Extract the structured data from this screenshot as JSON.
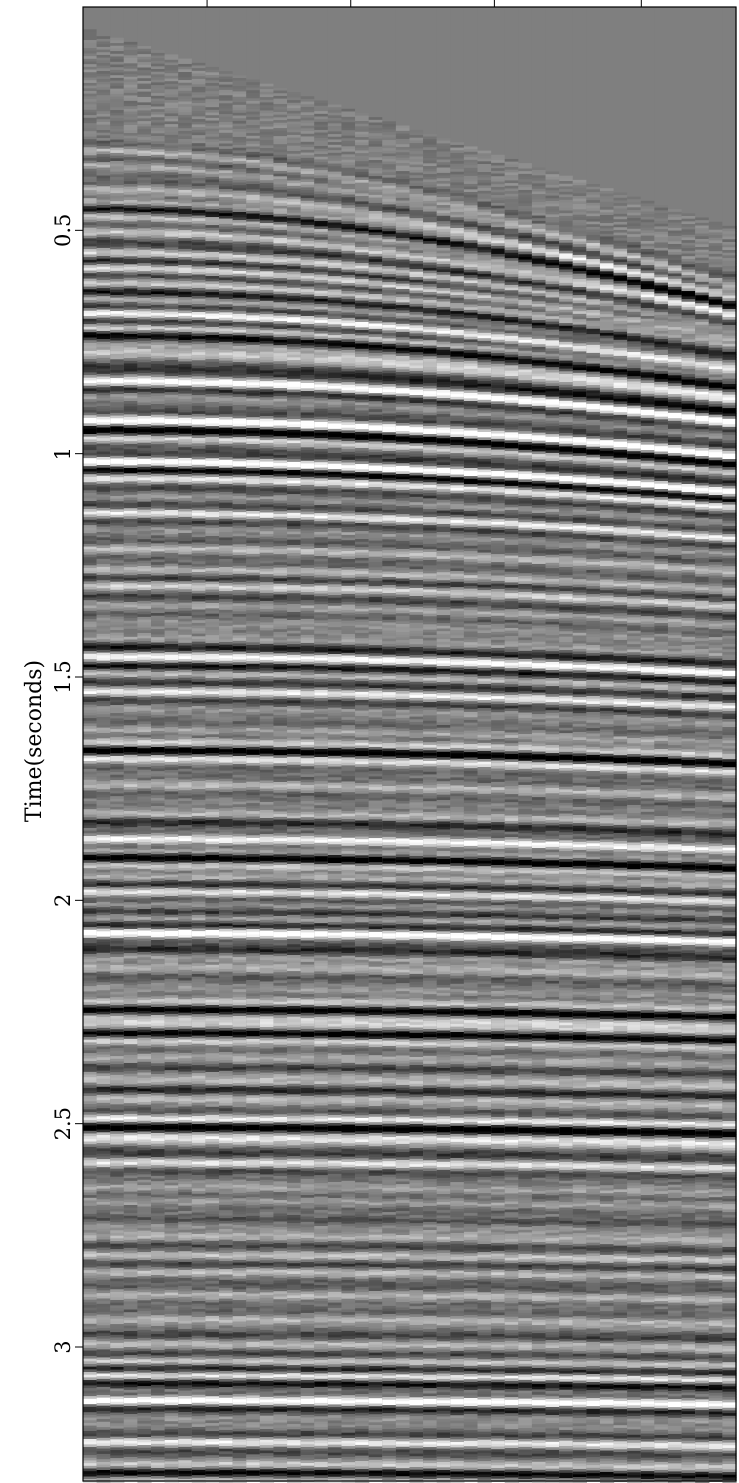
{
  "chart_data": {
    "type": "heatmap",
    "description_kind": "seismic-gather-variable-density",
    "ylabel": "Time(seconds)",
    "ylim": [
      0.0,
      3.3
    ],
    "y_inverted": true,
    "y_ticks": [
      0.5,
      1.0,
      1.5,
      2.0,
      2.5,
      3.0
    ],
    "y_tick_labels": [
      "0.5",
      "1",
      "1.5",
      "2",
      "2.5",
      "3"
    ],
    "x_tick_positions_fraction": [
      0.19,
      0.41,
      0.63,
      0.855
    ],
    "x_tick_labels": [],
    "traces": 48,
    "colormap": [
      "#000000",
      "#7f7f7f",
      "#ffffff"
    ],
    "first_break": {
      "time_near_offset": 0.05,
      "time_far_offset": 0.49
    },
    "grid": false,
    "legend": "none"
  }
}
